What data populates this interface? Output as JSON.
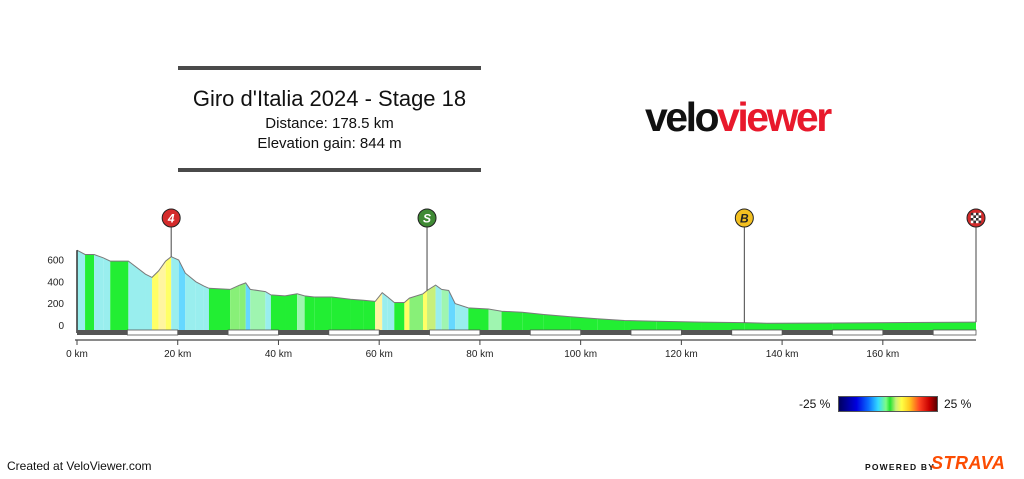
{
  "header": {
    "title": "Giro d'Italia 2024 - Stage 18",
    "distance": "Distance: 178.5 km",
    "elevation": "Elevation gain: 844 m"
  },
  "brand": {
    "part1": "velo",
    "part2": "viewer"
  },
  "legend": {
    "min_label": "-25 %",
    "max_label": "25 %"
  },
  "footer": {
    "credit": "Created at VeloViewer.com",
    "powered_by": "POWERED BY",
    "strava": "STRAVA"
  },
  "colors": {
    "steep_up": "#ffff66",
    "flat": "#22ee33",
    "down": "#99eeee",
    "axis": "#444444",
    "marker_line": "#444444"
  },
  "chart_data": {
    "type": "area",
    "xlabel": "",
    "ylabel": "",
    "x_unit": "km",
    "xlim": [
      0,
      178.5
    ],
    "ylim": [
      -70,
      710
    ],
    "x_ticks": [
      0,
      20,
      40,
      60,
      80,
      100,
      120,
      140,
      160
    ],
    "x_tick_labels": [
      "0 km",
      "20 km",
      "40 km",
      "60 km",
      "80 km",
      "100 km",
      "120 km",
      "140 km",
      "160 km"
    ],
    "y_ticks": [
      0,
      200,
      400,
      600
    ],
    "y_tick_labels": [
      "0",
      "200",
      "400",
      "600"
    ],
    "markers": [
      {
        "km": 18.7,
        "label": "4",
        "type": "climb",
        "color": "#d42b2b"
      },
      {
        "km": 69.5,
        "label": "S",
        "type": "sprint",
        "color": "#3f8a34"
      },
      {
        "km": 132.5,
        "label": "B",
        "type": "bonus",
        "color": "#f3c021"
      },
      {
        "km": 178.5,
        "label": "",
        "type": "finish",
        "color": "#d42b2b"
      }
    ],
    "elevation_profile": [
      [
        0,
        690
      ],
      [
        1.6,
        650
      ],
      [
        3.4,
        650
      ],
      [
        5.2,
        620
      ],
      [
        6.6,
        590
      ],
      [
        10.2,
        590
      ],
      [
        13.6,
        470
      ],
      [
        14.9,
        440
      ],
      [
        16.2,
        500
      ],
      [
        17.6,
        590
      ],
      [
        18.7,
        630
      ],
      [
        20.2,
        600
      ],
      [
        21.5,
        480
      ],
      [
        23.6,
        400
      ],
      [
        25.2,
        360
      ],
      [
        26.2,
        340
      ],
      [
        30.4,
        330
      ],
      [
        32.3,
        370
      ],
      [
        33.5,
        390
      ],
      [
        34.4,
        330
      ],
      [
        37.4,
        310
      ],
      [
        38.5,
        280
      ],
      [
        41.3,
        270
      ],
      [
        43.7,
        290
      ],
      [
        45.2,
        270
      ],
      [
        47.1,
        260
      ],
      [
        50.6,
        260
      ],
      [
        54.3,
        240
      ],
      [
        56.9,
        230
      ],
      [
        59.2,
        220
      ],
      [
        60.6,
        300
      ],
      [
        61.7,
        260
      ],
      [
        63.0,
        210
      ],
      [
        65.0,
        210
      ],
      [
        66.0,
        250
      ],
      [
        68.7,
        290
      ],
      [
        69.5,
        320
      ],
      [
        71.2,
        370
      ],
      [
        72.4,
        330
      ],
      [
        73.8,
        320
      ],
      [
        75.1,
        200
      ],
      [
        77.7,
        160
      ],
      [
        81.7,
        150
      ],
      [
        84.3,
        130
      ],
      [
        88.4,
        120
      ],
      [
        92.7,
        100
      ],
      [
        98.0,
        80
      ],
      [
        103.3,
        60
      ],
      [
        108.7,
        45
      ],
      [
        115.0,
        38
      ],
      [
        124.0,
        30
      ],
      [
        132.5,
        25
      ],
      [
        137.0,
        20
      ],
      [
        150.0,
        22
      ],
      [
        165.0,
        26
      ],
      [
        178.5,
        30
      ]
    ],
    "gradient_percent": [
      -2.5,
      0,
      -1.7,
      -2.1,
      0,
      -3.5,
      -2.3,
      4.6,
      6.4,
      3.6,
      -2.0,
      -9.2,
      -3.8,
      -2.5,
      -2.0,
      -0.2,
      2.1,
      1.7,
      -6.7,
      -0.7,
      -2.7,
      -0.4,
      0.8,
      -1.3,
      -0.5,
      0,
      -0.5,
      -0.4,
      -0.4,
      5.7,
      -3.6,
      -3.8,
      0,
      4.0,
      1.5,
      3.8,
      2.9,
      -3.3,
      -0.7,
      -9.2,
      -1.5,
      -0.3,
      -0.8,
      -0.2,
      -0.5,
      -0.4,
      -0.4,
      -0.3,
      -0.1,
      -0.1,
      -0.1,
      -0.1,
      0,
      0,
      0
    ]
  }
}
